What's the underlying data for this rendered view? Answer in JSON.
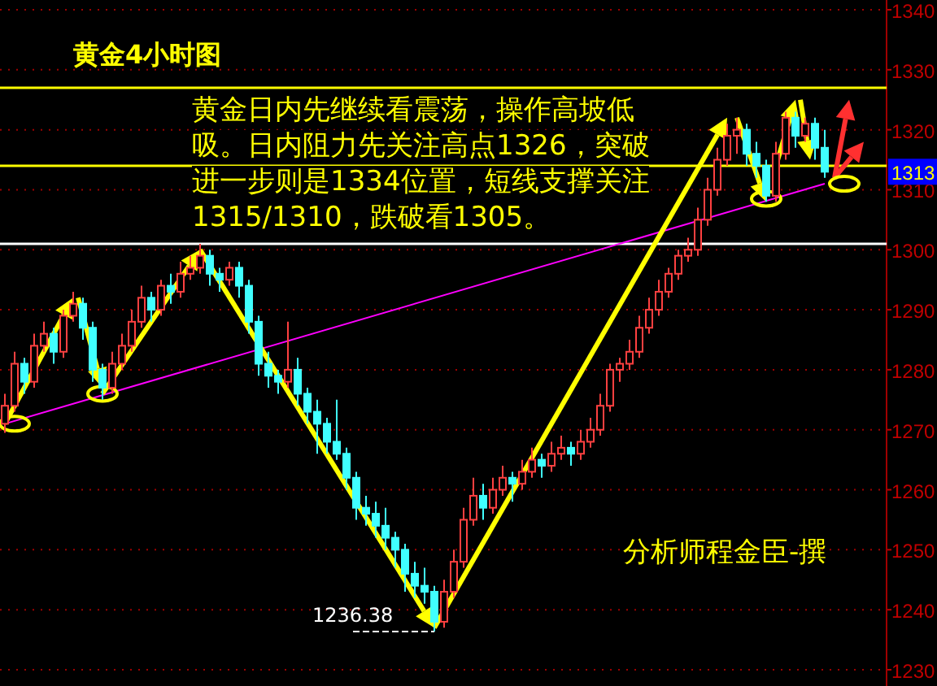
{
  "chart_data": {
    "type": "candlestick",
    "title": "黄金4小时图",
    "categories": [
      null,
      null,
      null,
      null,
      null,
      null,
      null,
      null,
      null,
      null,
      null,
      null,
      null,
      null,
      null,
      null,
      null,
      null,
      null,
      null,
      null,
      null,
      null,
      null,
      null,
      null,
      null,
      null,
      null,
      null,
      null,
      null,
      null,
      null,
      null,
      null,
      null,
      null,
      null,
      null,
      null,
      null,
      null,
      null,
      null,
      null,
      null,
      null,
      null,
      null,
      null,
      null,
      null,
      null,
      null,
      null,
      null,
      null,
      null,
      null,
      null,
      null,
      null,
      null,
      null,
      null,
      null,
      null,
      null,
      null,
      null,
      null,
      null,
      null,
      null,
      null,
      null,
      null,
      null,
      null,
      null,
      null,
      null,
      null,
      null
    ],
    "ohlc": [
      [
        1271,
        1276,
        1269.5,
        1274
      ],
      [
        1274,
        1283,
        1273,
        1281
      ],
      [
        1281,
        1282,
        1276,
        1278
      ],
      [
        1278,
        1286,
        1277,
        1284
      ],
      [
        1284,
        1288,
        1283,
        1286
      ],
      [
        1286,
        1287,
        1281,
        1283
      ],
      [
        1283,
        1290,
        1282,
        1289
      ],
      [
        1289,
        1293,
        1288,
        1291
      ],
      [
        1291,
        1292,
        1285,
        1287
      ],
      [
        1287,
        1288,
        1278,
        1280
      ],
      [
        1280,
        1281,
        1275,
        1277
      ],
      [
        1277,
        1283,
        1276,
        1281
      ],
      [
        1281,
        1286,
        1280,
        1284
      ],
      [
        1284,
        1290,
        1283,
        1288
      ],
      [
        1288,
        1294,
        1287,
        1292
      ],
      [
        1292,
        1293,
        1288,
        1290
      ],
      [
        1290,
        1295,
        1289,
        1294
      ],
      [
        1294,
        1296,
        1291,
        1293
      ],
      [
        1293,
        1298,
        1292,
        1296
      ],
      [
        1296,
        1299,
        1295,
        1297
      ],
      [
        1297,
        1301,
        1296,
        1299
      ],
      [
        1299,
        1300,
        1294,
        1296
      ],
      [
        1296,
        1297,
        1293,
        1295
      ],
      [
        1295,
        1298,
        1294,
        1297
      ],
      [
        1297,
        1298,
        1292,
        1294
      ],
      [
        1294,
        1295,
        1286,
        1288
      ],
      [
        1288,
        1289,
        1279,
        1281
      ],
      [
        1281,
        1283,
        1277,
        1279
      ],
      [
        1279,
        1280,
        1276,
        1278
      ],
      [
        1278,
        1288,
        1277,
        1280
      ],
      [
        1280,
        1282,
        1274,
        1276
      ],
      [
        1276,
        1277,
        1271,
        1273
      ],
      [
        1273,
        1275,
        1266,
        1271
      ],
      [
        1271,
        1272,
        1266,
        1268
      ],
      [
        1268,
        1275,
        1265,
        1266
      ],
      [
        1266,
        1267,
        1260,
        1262
      ],
      [
        1262,
        1263,
        1255,
        1257
      ],
      [
        1257,
        1259,
        1254,
        1256
      ],
      [
        1256,
        1258,
        1252,
        1254
      ],
      [
        1254,
        1257,
        1250,
        1252
      ],
      [
        1252,
        1253,
        1247,
        1250
      ],
      [
        1250,
        1251,
        1243,
        1246
      ],
      [
        1246,
        1248,
        1242,
        1244
      ],
      [
        1244,
        1247,
        1241,
        1243
      ],
      [
        1243,
        1244,
        1236.38,
        1238
      ],
      [
        1238,
        1245,
        1237,
        1243
      ],
      [
        1243,
        1250,
        1242,
        1248
      ],
      [
        1248,
        1257,
        1247,
        1255
      ],
      [
        1255,
        1262,
        1254,
        1259
      ],
      [
        1259,
        1261,
        1255,
        1257
      ],
      [
        1257,
        1262,
        1256,
        1260
      ],
      [
        1260,
        1264,
        1259,
        1262
      ],
      [
        1262,
        1263,
        1258,
        1261
      ],
      [
        1261,
        1265,
        1260,
        1263
      ],
      [
        1263,
        1267,
        1262,
        1265
      ],
      [
        1265,
        1266,
        1262,
        1264
      ],
      [
        1264,
        1268,
        1263,
        1266
      ],
      [
        1266,
        1269,
        1265,
        1267
      ],
      [
        1267,
        1268,
        1264,
        1266
      ],
      [
        1266,
        1270,
        1265,
        1268
      ],
      [
        1268,
        1272,
        1267,
        1270
      ],
      [
        1270,
        1276,
        1269,
        1274
      ],
      [
        1274,
        1281,
        1273,
        1280
      ],
      [
        1280,
        1282,
        1278,
        1281
      ],
      [
        1281,
        1285,
        1280,
        1283
      ],
      [
        1283,
        1289,
        1282,
        1287
      ],
      [
        1287,
        1292,
        1286,
        1290
      ],
      [
        1290,
        1295,
        1289,
        1293
      ],
      [
        1293,
        1297,
        1292,
        1296
      ],
      [
        1296,
        1300,
        1295,
        1299
      ],
      [
        1299,
        1302,
        1298,
        1300
      ],
      [
        1300,
        1307,
        1299,
        1305
      ],
      [
        1305,
        1312,
        1304,
        1310
      ],
      [
        1310,
        1317,
        1309,
        1315
      ],
      [
        1315,
        1321,
        1314,
        1319
      ],
      [
        1319,
        1322,
        1316,
        1320
      ],
      [
        1320,
        1321,
        1314,
        1316
      ],
      [
        1316,
        1318,
        1312,
        1314
      ],
      [
        1314,
        1315,
        1308,
        1309
      ],
      [
        1309,
        1318,
        1308,
        1316
      ],
      [
        1316,
        1323,
        1315,
        1322
      ],
      [
        1322,
        1323,
        1317,
        1319
      ],
      [
        1319,
        1322,
        1318,
        1321
      ],
      [
        1321,
        1322,
        1315,
        1317
      ],
      [
        1317,
        1320,
        1312,
        1313
      ]
    ],
    "series": [
      {
        "type": "line",
        "color": "#ff00ff",
        "values": [
          1271,
          null,
          null,
          null,
          null,
          null,
          null,
          null,
          null,
          null,
          null,
          null,
          null,
          null,
          null,
          null,
          null,
          null,
          null,
          null,
          null,
          null,
          null,
          null,
          null,
          null,
          null,
          null,
          null,
          null,
          null,
          null,
          null,
          null,
          null,
          null,
          null,
          null,
          null,
          null,
          null,
          null,
          null,
          null,
          null,
          null,
          null,
          null,
          null,
          null,
          null,
          null,
          null,
          null,
          null,
          null,
          null,
          null,
          null,
          null,
          null,
          null,
          null,
          null,
          null,
          null,
          null,
          null,
          null,
          null,
          null,
          null,
          null,
          null,
          null,
          null,
          null,
          null,
          null,
          null,
          null,
          null,
          null,
          null,
          1311
        ]
      }
    ],
    "ylim": [
      1230,
      1340
    ],
    "yticks": [
      1230,
      1240,
      1250,
      1260,
      1270,
      1280,
      1290,
      1300,
      1310,
      1320,
      1330,
      1340
    ],
    "grid": "y",
    "tick_labels": "y",
    "ref_lines": [
      {
        "axis": "y",
        "value": 1301,
        "color": "#ffffff"
      },
      {
        "axis": "y",
        "value": 1327,
        "color": "#ffff00"
      },
      {
        "axis": "y",
        "value": 1314,
        "color": "#ffff00"
      }
    ],
    "annotations": [
      "黄金日内先继续看震荡，操作高坡低吸。日内阻力先关注高点1326，突破进一步则是1334位置，短线支撑关注1315/1310，跌破看1305。",
      "分析师程金臣-撰",
      "1236.38",
      "1313"
    ]
  }
}
